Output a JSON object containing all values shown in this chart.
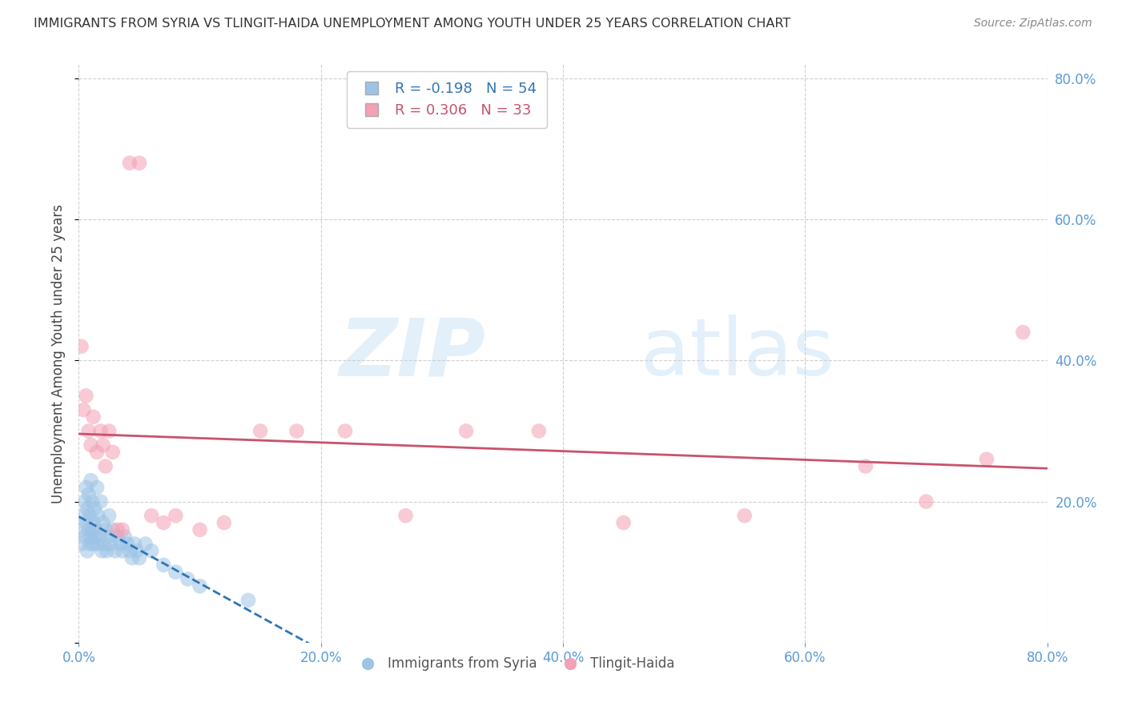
{
  "title": "IMMIGRANTS FROM SYRIA VS TLINGIT-HAIDA UNEMPLOYMENT AMONG YOUTH UNDER 25 YEARS CORRELATION CHART",
  "source": "Source: ZipAtlas.com",
  "ylabel": "Unemployment Among Youth under 25 years",
  "tick_color": "#5b9bd5",
  "R_blue": -0.198,
  "N_blue": 54,
  "R_pink": 0.306,
  "N_pink": 33,
  "blue_color": "#9dc3e6",
  "pink_color": "#f4a0b5",
  "trendline_blue_color": "#2e75b6",
  "trendline_pink_color": "#c9526b",
  "legend_blue_label": "Immigrants from Syria",
  "legend_pink_label": "Tlingit-Haida",
  "watermark_zip": "ZIP",
  "watermark_atlas": "atlas",
  "blue_scatter_x": [
    0.002,
    0.003,
    0.004,
    0.005,
    0.005,
    0.006,
    0.006,
    0.007,
    0.007,
    0.008,
    0.008,
    0.009,
    0.009,
    0.01,
    0.01,
    0.011,
    0.011,
    0.012,
    0.012,
    0.013,
    0.013,
    0.014,
    0.015,
    0.015,
    0.016,
    0.017,
    0.018,
    0.019,
    0.02,
    0.021,
    0.022,
    0.023,
    0.024,
    0.025,
    0.026,
    0.028,
    0.03,
    0.032,
    0.034,
    0.036,
    0.038,
    0.04,
    0.042,
    0.044,
    0.046,
    0.048,
    0.05,
    0.055,
    0.06,
    0.07,
    0.08,
    0.09,
    0.1,
    0.14
  ],
  "blue_scatter_y": [
    0.14,
    0.16,
    0.18,
    0.15,
    0.2,
    0.17,
    0.22,
    0.13,
    0.19,
    0.16,
    0.21,
    0.14,
    0.18,
    0.15,
    0.23,
    0.16,
    0.2,
    0.14,
    0.17,
    0.15,
    0.19,
    0.16,
    0.22,
    0.14,
    0.18,
    0.15,
    0.2,
    0.13,
    0.17,
    0.14,
    0.16,
    0.13,
    0.15,
    0.18,
    0.14,
    0.16,
    0.13,
    0.15,
    0.14,
    0.13,
    0.15,
    0.14,
    0.13,
    0.12,
    0.14,
    0.13,
    0.12,
    0.14,
    0.13,
    0.11,
    0.1,
    0.09,
    0.08,
    0.06
  ],
  "pink_scatter_x": [
    0.002,
    0.004,
    0.006,
    0.008,
    0.01,
    0.012,
    0.015,
    0.018,
    0.02,
    0.022,
    0.025,
    0.028,
    0.032,
    0.036,
    0.042,
    0.05,
    0.06,
    0.07,
    0.08,
    0.1,
    0.12,
    0.15,
    0.18,
    0.22,
    0.27,
    0.32,
    0.38,
    0.45,
    0.55,
    0.65,
    0.7,
    0.75,
    0.78
  ],
  "pink_scatter_y": [
    0.42,
    0.33,
    0.35,
    0.3,
    0.28,
    0.32,
    0.27,
    0.3,
    0.28,
    0.25,
    0.3,
    0.27,
    0.16,
    0.16,
    0.68,
    0.68,
    0.18,
    0.17,
    0.18,
    0.16,
    0.17,
    0.3,
    0.3,
    0.3,
    0.18,
    0.3,
    0.3,
    0.17,
    0.18,
    0.25,
    0.2,
    0.26,
    0.44
  ]
}
